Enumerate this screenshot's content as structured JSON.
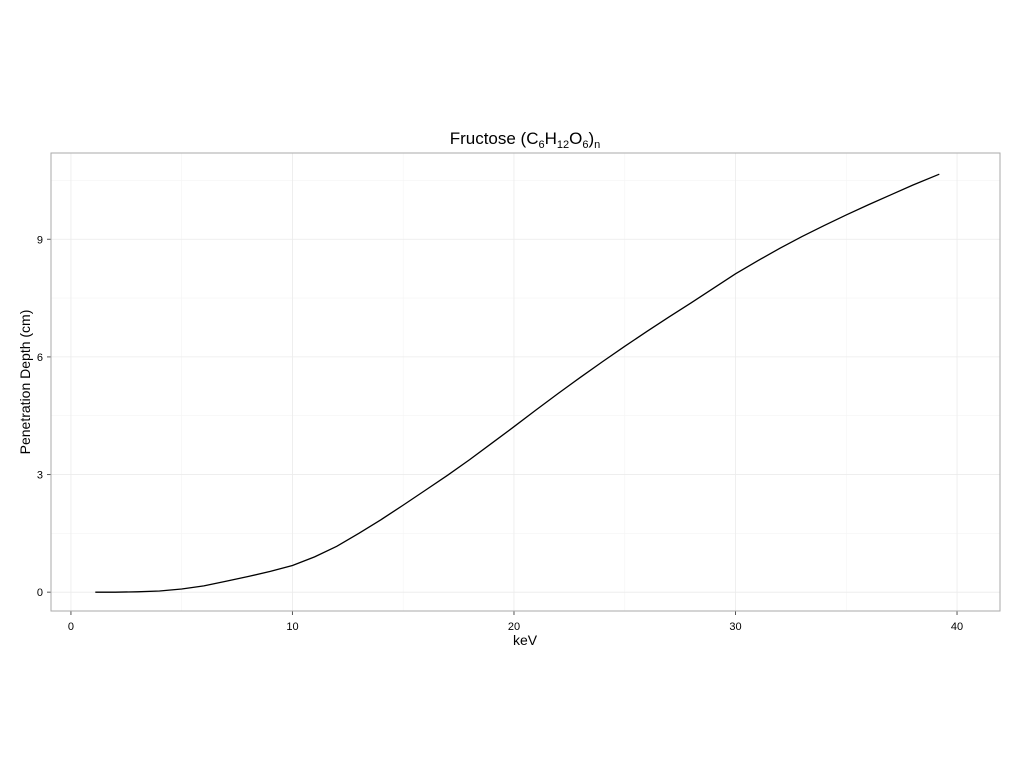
{
  "chart_data": {
    "type": "line",
    "title": [
      {
        "text": "Fructose (C"
      },
      {
        "text": "6",
        "sub": true
      },
      {
        "text": "H"
      },
      {
        "text": "12",
        "sub": true
      },
      {
        "text": "O"
      },
      {
        "text": "6",
        "sub": true
      },
      {
        "text": ")"
      },
      {
        "text": "n",
        "sub": true
      }
    ],
    "xlabel": "keV",
    "ylabel": "Penetration Depth (cm)",
    "x": [
      1.1,
      2,
      3,
      4,
      5,
      6,
      7,
      8,
      9,
      10,
      11,
      12,
      13,
      14,
      15,
      16,
      17,
      18,
      19,
      20,
      21,
      22,
      23,
      24,
      25,
      26,
      27,
      28,
      29,
      30,
      31,
      32,
      33,
      34,
      35,
      36,
      37,
      38,
      39.2
    ],
    "series": [
      {
        "color": "#000000",
        "values": [
          0,
          0.0,
          0.01,
          0.03,
          0.08,
          0.16,
          0.28,
          0.4,
          0.53,
          0.68,
          0.9,
          1.17,
          1.5,
          1.85,
          2.22,
          2.6,
          2.98,
          3.38,
          3.8,
          4.22,
          4.65,
          5.07,
          5.48,
          5.88,
          6.27,
          6.65,
          7.02,
          7.38,
          7.75,
          8.12,
          8.45,
          8.77,
          9.07,
          9.35,
          9.62,
          9.88,
          10.13,
          10.38,
          10.66
        ]
      }
    ],
    "xlim": [
      -0.9,
      41.94
    ],
    "ylim": [
      -0.48,
      11.2
    ],
    "xticks": [
      0,
      10,
      20,
      30,
      40
    ],
    "yticks": [
      0,
      3,
      6,
      9
    ],
    "minor_xticks": [
      5,
      15,
      25,
      35
    ],
    "minor_yticks": [
      1.5,
      4.5,
      7.5,
      10.5
    ],
    "grid": true
  }
}
